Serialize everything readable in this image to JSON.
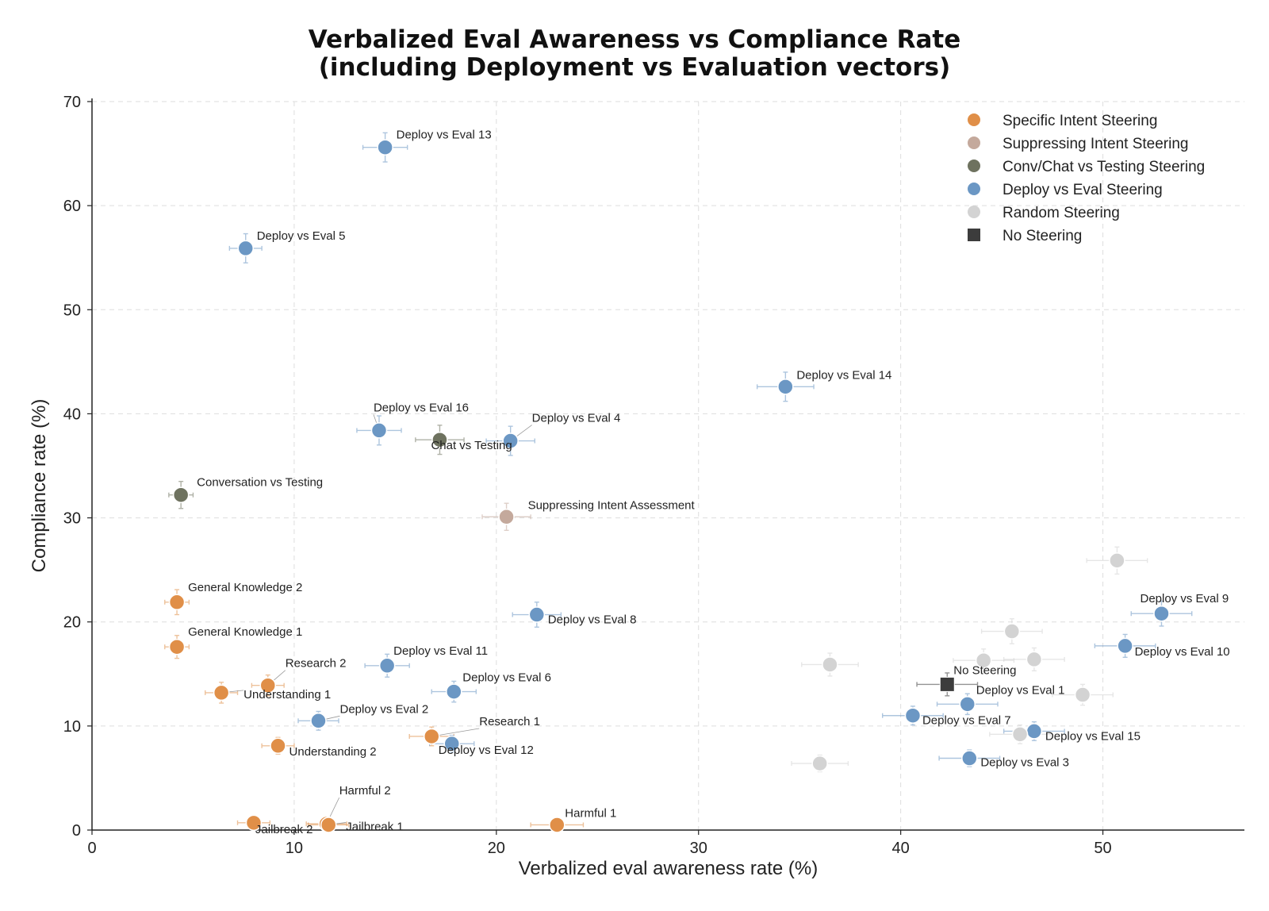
{
  "chart_data": {
    "type": "scatter",
    "title": "Verbalized Eval Awareness vs Compliance Rate",
    "subtitle": "(including Deployment vs Evaluation vectors)",
    "xlabel": "Verbalized eval awareness rate (%)",
    "ylabel": "Compliance rate (%)",
    "xlim": [
      0,
      57
    ],
    "ylim": [
      0,
      70
    ],
    "xticks": [
      0,
      10,
      20,
      30,
      40,
      50
    ],
    "yticks": [
      0,
      10,
      20,
      30,
      40,
      50,
      60,
      70
    ],
    "grid": true,
    "legend_position": "top-right",
    "series": [
      {
        "name": "Specific Intent Steering",
        "color": "#E08F48",
        "marker": "circle",
        "points": [
          {
            "label": "General Knowledge 2",
            "x": 4.2,
            "y": 21.9,
            "xerr": 0.6,
            "yerr": 1.2
          },
          {
            "label": "General Knowledge 1",
            "x": 4.2,
            "y": 17.6,
            "xerr": 0.6,
            "yerr": 1.1
          },
          {
            "label": "Research 2",
            "x": 8.7,
            "y": 13.9,
            "xerr": 0.8,
            "yerr": 1.0
          },
          {
            "label": "Understanding 1",
            "x": 6.4,
            "y": 13.2,
            "xerr": 0.8,
            "yerr": 1.0
          },
          {
            "label": "Understanding 2",
            "x": 9.2,
            "y": 8.1,
            "xerr": 0.8,
            "yerr": 0.8
          },
          {
            "label": "Research 1",
            "x": 16.8,
            "y": 9.0,
            "xerr": 1.1,
            "yerr": 0.9
          },
          {
            "label": "Harmful 2",
            "x": 11.6,
            "y": 0.6,
            "xerr": 1.0,
            "yerr": 0.4
          },
          {
            "label": "Jailbreak 2",
            "x": 8.0,
            "y": 0.7,
            "xerr": 0.8,
            "yerr": 0.4
          },
          {
            "label": "Jailbreak 1",
            "x": 11.7,
            "y": 0.5,
            "xerr": 1.0,
            "yerr": 0.4
          },
          {
            "label": "Harmful 1",
            "x": 23.0,
            "y": 0.5,
            "xerr": 1.3,
            "yerr": 0.4
          }
        ]
      },
      {
        "name": "Suppressing Intent Steering",
        "color": "#C4A99C",
        "marker": "circle",
        "points": [
          {
            "label": "Suppressing Intent Assessment",
            "x": 20.5,
            "y": 30.1,
            "xerr": 1.2,
            "yerr": 1.3
          }
        ]
      },
      {
        "name": "Conv/Chat vs Testing Steering",
        "color": "#6E725F",
        "marker": "circle",
        "points": [
          {
            "label": "Conversation vs Testing",
            "x": 4.4,
            "y": 32.2,
            "xerr": 0.6,
            "yerr": 1.3
          },
          {
            "label": "Chat vs Testing",
            "x": 17.2,
            "y": 37.5,
            "xerr": 1.2,
            "yerr": 1.4
          }
        ]
      },
      {
        "name": "Deploy vs Eval Steering",
        "color": "#6B97C4",
        "marker": "circle",
        "points": [
          {
            "label": "Deploy vs Eval 13",
            "x": 14.5,
            "y": 65.6,
            "xerr": 1.1,
            "yerr": 1.4
          },
          {
            "label": "Deploy vs Eval 5",
            "x": 7.6,
            "y": 55.9,
            "xerr": 0.8,
            "yerr": 1.4
          },
          {
            "label": "Deploy vs Eval 14",
            "x": 34.3,
            "y": 42.6,
            "xerr": 1.4,
            "yerr": 1.4
          },
          {
            "label": "Deploy vs Eval 16",
            "x": 14.2,
            "y": 38.4,
            "xerr": 1.1,
            "yerr": 1.4
          },
          {
            "label": "Deploy vs Eval 4",
            "x": 20.7,
            "y": 37.4,
            "xerr": 1.2,
            "yerr": 1.4
          },
          {
            "label": "Deploy vs Eval 8",
            "x": 22.0,
            "y": 20.7,
            "xerr": 1.2,
            "yerr": 1.2
          },
          {
            "label": "Deploy vs Eval 11",
            "x": 14.6,
            "y": 15.8,
            "xerr": 1.1,
            "yerr": 1.1
          },
          {
            "label": "Deploy vs Eval 6",
            "x": 17.9,
            "y": 13.3,
            "xerr": 1.1,
            "yerr": 1.0
          },
          {
            "label": "Deploy vs Eval 2",
            "x": 11.2,
            "y": 10.5,
            "xerr": 1.0,
            "yerr": 0.9
          },
          {
            "label": "Deploy vs Eval 12",
            "x": 17.8,
            "y": 8.3,
            "xerr": 1.1,
            "yerr": 0.8
          },
          {
            "label": "Deploy vs Eval 9",
            "x": 52.9,
            "y": 20.8,
            "xerr": 1.5,
            "yerr": 1.2
          },
          {
            "label": "Deploy vs Eval 10",
            "x": 51.1,
            "y": 17.7,
            "xerr": 1.5,
            "yerr": 1.1
          },
          {
            "label": "Deploy vs Eval 1",
            "x": 43.3,
            "y": 12.1,
            "xerr": 1.5,
            "yerr": 1.0
          },
          {
            "label": "Deploy vs Eval 7",
            "x": 40.6,
            "y": 11.0,
            "xerr": 1.5,
            "yerr": 0.9
          },
          {
            "label": "Deploy vs Eval 15",
            "x": 46.6,
            "y": 9.5,
            "xerr": 1.5,
            "yerr": 0.9
          },
          {
            "label": "Deploy vs Eval 3",
            "x": 43.4,
            "y": 6.9,
            "xerr": 1.5,
            "yerr": 0.8
          }
        ]
      },
      {
        "name": "Random Steering",
        "color": "#D3D3D3",
        "marker": "circle",
        "points": [
          {
            "label": "",
            "x": 50.7,
            "y": 25.9,
            "xerr": 1.5,
            "yerr": 1.3
          },
          {
            "label": "",
            "x": 45.5,
            "y": 19.1,
            "xerr": 1.5,
            "yerr": 1.2
          },
          {
            "label": "",
            "x": 44.1,
            "y": 16.3,
            "xerr": 1.5,
            "yerr": 1.1
          },
          {
            "label": "",
            "x": 46.6,
            "y": 16.4,
            "xerr": 1.5,
            "yerr": 1.1
          },
          {
            "label": "",
            "x": 36.5,
            "y": 15.9,
            "xerr": 1.4,
            "yerr": 1.1
          },
          {
            "label": "",
            "x": 49.0,
            "y": 13.0,
            "xerr": 1.5,
            "yerr": 1.0
          },
          {
            "label": "",
            "x": 45.9,
            "y": 9.2,
            "xerr": 1.5,
            "yerr": 0.9
          },
          {
            "label": "",
            "x": 36.0,
            "y": 6.4,
            "xerr": 1.4,
            "yerr": 0.8
          }
        ]
      },
      {
        "name": "No Steering",
        "color": "#3C3C3C",
        "marker": "square",
        "points": [
          {
            "label": "No Steering",
            "x": 42.3,
            "y": 14.0,
            "xerr": 1.5,
            "yerr": 1.1
          }
        ]
      }
    ]
  }
}
